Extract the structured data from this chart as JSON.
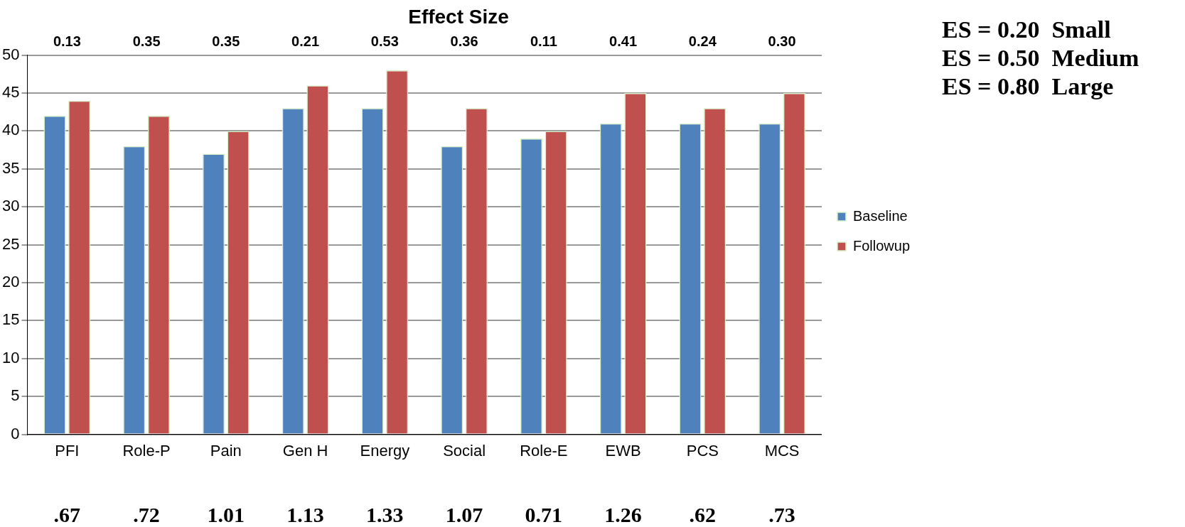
{
  "chart_data": {
    "type": "bar",
    "title": "Effect Size",
    "categories": [
      "PFI",
      "Role-P",
      "Pain",
      "Gen H",
      "Energy",
      "Social",
      "Role-E",
      "EWB",
      "PCS",
      "MCS"
    ],
    "series": [
      {
        "name": "Baseline",
        "color": "#4f81bd",
        "values": [
          42,
          38,
          37,
          43,
          43,
          38,
          39,
          41,
          41,
          41
        ]
      },
      {
        "name": "Followup",
        "color": "#c0504d",
        "values": [
          44,
          42,
          40,
          46,
          48,
          43,
          40,
          45,
          43,
          45
        ]
      }
    ],
    "ylim": [
      0,
      50
    ],
    "yticks": [
      0,
      5,
      10,
      15,
      20,
      25,
      30,
      35,
      40,
      45,
      50
    ],
    "grid": "y",
    "legend": "right",
    "annotations": [
      "0.13",
      "0.35",
      "0.35",
      "0.21",
      "0.53",
      "0.36",
      "0.11",
      "0.41",
      "0.24",
      "0.30",
      ".67",
      ".72",
      "1.01",
      "1.13",
      "1.33",
      "1.07",
      "0.71",
      "1.26",
      ".62",
      ".73",
      "ES = 0.20  Small",
      "ES = 0.50  Medium",
      "ES = 0.80  Large"
    ]
  }
}
